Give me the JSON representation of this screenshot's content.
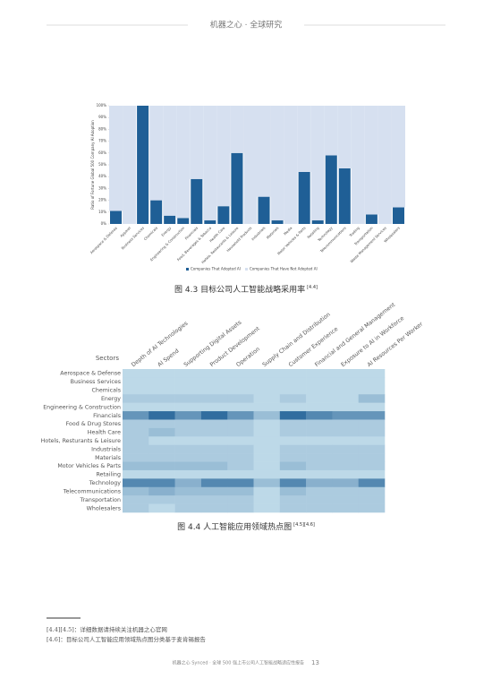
{
  "header": {
    "title": "机器之心 · 全球研究"
  },
  "chart_data": [
    {
      "type": "bar",
      "title": "图 4.3 目标公司人工智能战略采用率",
      "title_ref": "[4.4]",
      "y_label": "Ratio of Fortune Global 500 Company AI Adoption",
      "categories": [
        "Aerospace & Defense",
        "Apparel",
        "Business Services",
        "Chemicals",
        "Energy",
        "Engineering & Construction",
        "Financials",
        "Food, Beverages & Tobacco",
        "Health Care",
        "Hotels, Restaurants & Leisure",
        "Household Products",
        "Industrials",
        "Materials",
        "Media",
        "Motor Vehicles & Parts",
        "Retailing",
        "Technology",
        "Telecommunications",
        "Trading",
        "Transportation",
        "Waste Management Services",
        "Wholesalers"
      ],
      "series": [
        {
          "name": "Companies That Adopted AI",
          "color": "#1f5f96",
          "values": [
            11,
            0,
            100,
            20,
            7,
            5,
            38,
            3,
            15,
            60,
            0,
            23,
            3,
            0,
            44,
            3,
            58,
            47,
            0,
            8,
            0,
            14
          ]
        },
        {
          "name": "Companies That Have Not Adopted AI",
          "color": "#d6e0f0",
          "values": [
            89,
            100,
            0,
            80,
            93,
            95,
            62,
            97,
            85,
            40,
            100,
            77,
            97,
            100,
            56,
            97,
            42,
            53,
            100,
            92,
            100,
            86
          ]
        }
      ],
      "ylim": [
        0,
        100
      ],
      "yticks": [
        {
          "value": 0,
          "label": "0%"
        },
        {
          "value": 10,
          "label": "10%"
        },
        {
          "value": 20,
          "label": "20%"
        },
        {
          "value": 30,
          "label": "30%"
        },
        {
          "value": 40,
          "label": "40%"
        },
        {
          "value": 50,
          "label": "50%"
        },
        {
          "value": 60,
          "label": "60%"
        },
        {
          "value": 70,
          "label": "70%"
        },
        {
          "value": 80,
          "label": "80%"
        },
        {
          "value": 90,
          "label": "90%"
        },
        {
          "value": 100,
          "label": "100%"
        }
      ],
      "legend": "bottom"
    },
    {
      "type": "heatmap",
      "title": "图 4.4 人工智能应用领域热点图",
      "title_ref": "[4.5][4.6]",
      "y_label": "Sectors",
      "x": [
        "Depth of AI Technologies",
        "AI Spend",
        "Supporting Digital Assets",
        "Product Development",
        "Operation",
        "Supply Chain and Distribution",
        "Customer Experience",
        "Financial and General Management",
        "Exposure to AI in Workforce",
        "AI Resources Per Worker"
      ],
      "y": [
        "Aerospace & Defense",
        "Business Services",
        "Chemicals",
        "Energy",
        "Engineering & Construction",
        "Financials",
        "Food & Drug Stores",
        "Health Care",
        "Hotels, Resturants & Leisure",
        "Industrials",
        "Materials",
        "Motor Vehicles & Parts",
        "Retailing",
        "Technology",
        "Telecommunications",
        "Transportation",
        "Wholesalers"
      ],
      "values": [
        [
          1,
          1,
          1,
          1,
          1,
          1,
          1,
          1,
          1,
          1
        ],
        [
          1,
          1,
          1,
          1,
          1,
          1,
          1,
          1,
          1,
          1
        ],
        [
          1,
          1,
          1,
          1,
          1,
          1,
          1,
          1,
          1,
          1
        ],
        [
          2,
          2,
          2,
          2,
          2,
          1,
          2,
          1,
          1,
          3
        ],
        [
          1,
          1,
          1,
          1,
          1,
          1,
          1,
          1,
          1,
          1
        ],
        [
          6,
          9,
          6,
          9,
          6,
          3,
          9,
          7,
          6,
          6
        ],
        [
          2,
          2,
          2,
          2,
          2,
          1,
          2,
          2,
          2,
          2
        ],
        [
          2,
          3,
          2,
          2,
          2,
          1,
          2,
          2,
          2,
          2
        ],
        [
          2,
          1,
          1,
          1,
          1,
          1,
          1,
          1,
          1,
          1
        ],
        [
          2,
          2,
          2,
          2,
          2,
          1,
          2,
          2,
          2,
          2
        ],
        [
          2,
          2,
          2,
          2,
          2,
          1,
          2,
          2,
          2,
          2
        ],
        [
          3,
          3,
          3,
          3,
          2,
          1,
          3,
          2,
          2,
          2
        ],
        [
          1,
          1,
          1,
          1,
          1,
          1,
          1,
          1,
          1,
          1
        ],
        [
          7,
          7,
          4,
          7,
          7,
          3,
          7,
          4,
          4,
          7
        ],
        [
          3,
          4,
          3,
          3,
          3,
          1,
          3,
          2,
          2,
          2
        ],
        [
          2,
          2,
          2,
          2,
          2,
          1,
          2,
          2,
          2,
          2
        ],
        [
          2,
          1,
          2,
          2,
          2,
          1,
          2,
          2,
          2,
          2
        ]
      ],
      "zlim": [
        0,
        10
      ],
      "colors": [
        "#cfe6f1",
        "#1f5f96"
      ]
    }
  ],
  "footnotes": [
    "[4.4][4.5]：详细数据请持续关注机器之心官网",
    "[4.6]：目标公司人工智能应用领域热点图分类基于麦肯锡报告"
  ],
  "footer": {
    "text": "机器之心 Synced · 全球 500 强上市公司人工智能战略适应性报告",
    "page": "13"
  }
}
